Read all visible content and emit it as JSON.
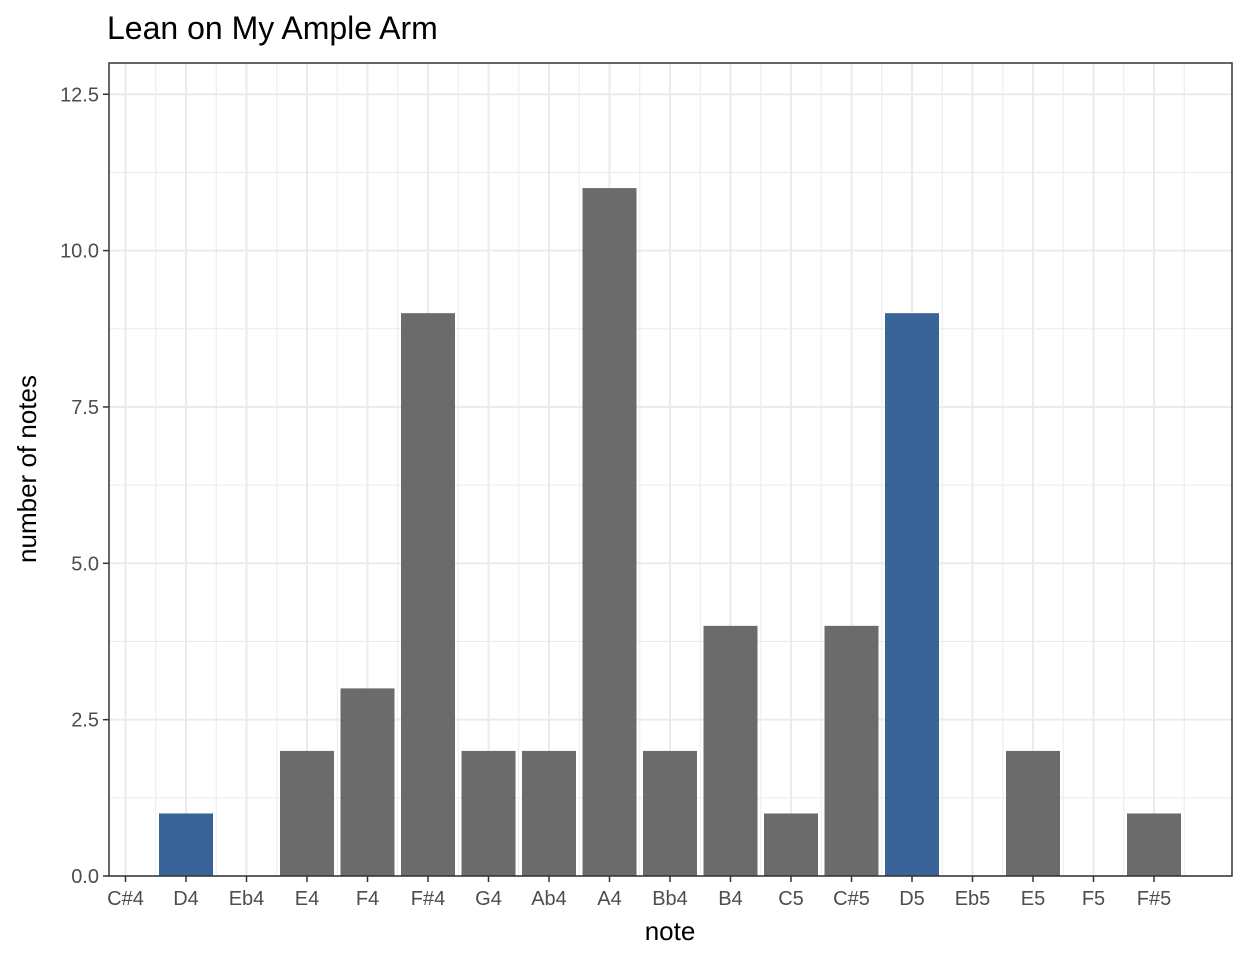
{
  "chart_data": {
    "type": "bar",
    "title": "Lean on My Ample Arm",
    "xlabel": "note",
    "ylabel": "number of notes",
    "categories": [
      "C#4",
      "D4",
      "Eb4",
      "E4",
      "F4",
      "F#4",
      "G4",
      "Ab4",
      "A4",
      "Bb4",
      "B4",
      "C5",
      "C#5",
      "D5",
      "Eb5",
      "E5",
      "F5",
      "F#5"
    ],
    "values": [
      0,
      1,
      0,
      2,
      3,
      9,
      2,
      2,
      11,
      2,
      4,
      1,
      4,
      9,
      0,
      2,
      0,
      1
    ],
    "highlighted": [
      "D4",
      "D5"
    ],
    "colors": {
      "default": "#6b6b6b",
      "highlight": "#3a6398",
      "grid": "#ebebeb",
      "panel_border": "#333333"
    },
    "ylim": [
      0,
      13
    ],
    "y_ticks": [
      0,
      2.5,
      5,
      7.5,
      10,
      12.5
    ],
    "y_tick_labels": [
      "0.0",
      "2.5",
      "5.0",
      "7.5",
      "10.0",
      "12.5"
    ],
    "grid": true,
    "legend": "none"
  }
}
